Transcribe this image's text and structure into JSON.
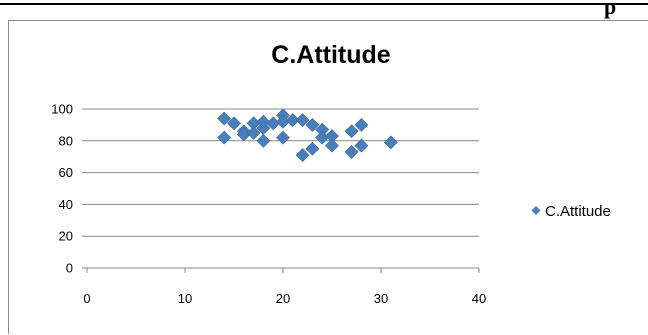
{
  "page": {
    "header_fragment": "p"
  },
  "chart_data": {
    "type": "scatter",
    "title": "C.Attitude",
    "xlabel": "",
    "ylabel": "",
    "xlim": [
      0,
      40
    ],
    "ylim": [
      0,
      100
    ],
    "x_ticks": [
      0,
      10,
      20,
      30,
      40
    ],
    "y_ticks": [
      0,
      20,
      40,
      60,
      80,
      100
    ],
    "grid": "horizontal",
    "legend": "right",
    "series": [
      {
        "name": "C.Attitude",
        "color": "#4a7ebb",
        "marker": "diamond",
        "points": [
          [
            14,
            94
          ],
          [
            14,
            82
          ],
          [
            15,
            91
          ],
          [
            16,
            86
          ],
          [
            16,
            84
          ],
          [
            17,
            91
          ],
          [
            17,
            85
          ],
          [
            18,
            88
          ],
          [
            18,
            80
          ],
          [
            18,
            92
          ],
          [
            19,
            91
          ],
          [
            20,
            96
          ],
          [
            20,
            92
          ],
          [
            20,
            82
          ],
          [
            21,
            93
          ],
          [
            22,
            93
          ],
          [
            22,
            71
          ],
          [
            23,
            90
          ],
          [
            23,
            75
          ],
          [
            24,
            87
          ],
          [
            24,
            82
          ],
          [
            25,
            83
          ],
          [
            25,
            77
          ],
          [
            27,
            86
          ],
          [
            27,
            73
          ],
          [
            28,
            90
          ],
          [
            28,
            77
          ],
          [
            31,
            79
          ]
        ]
      }
    ]
  }
}
